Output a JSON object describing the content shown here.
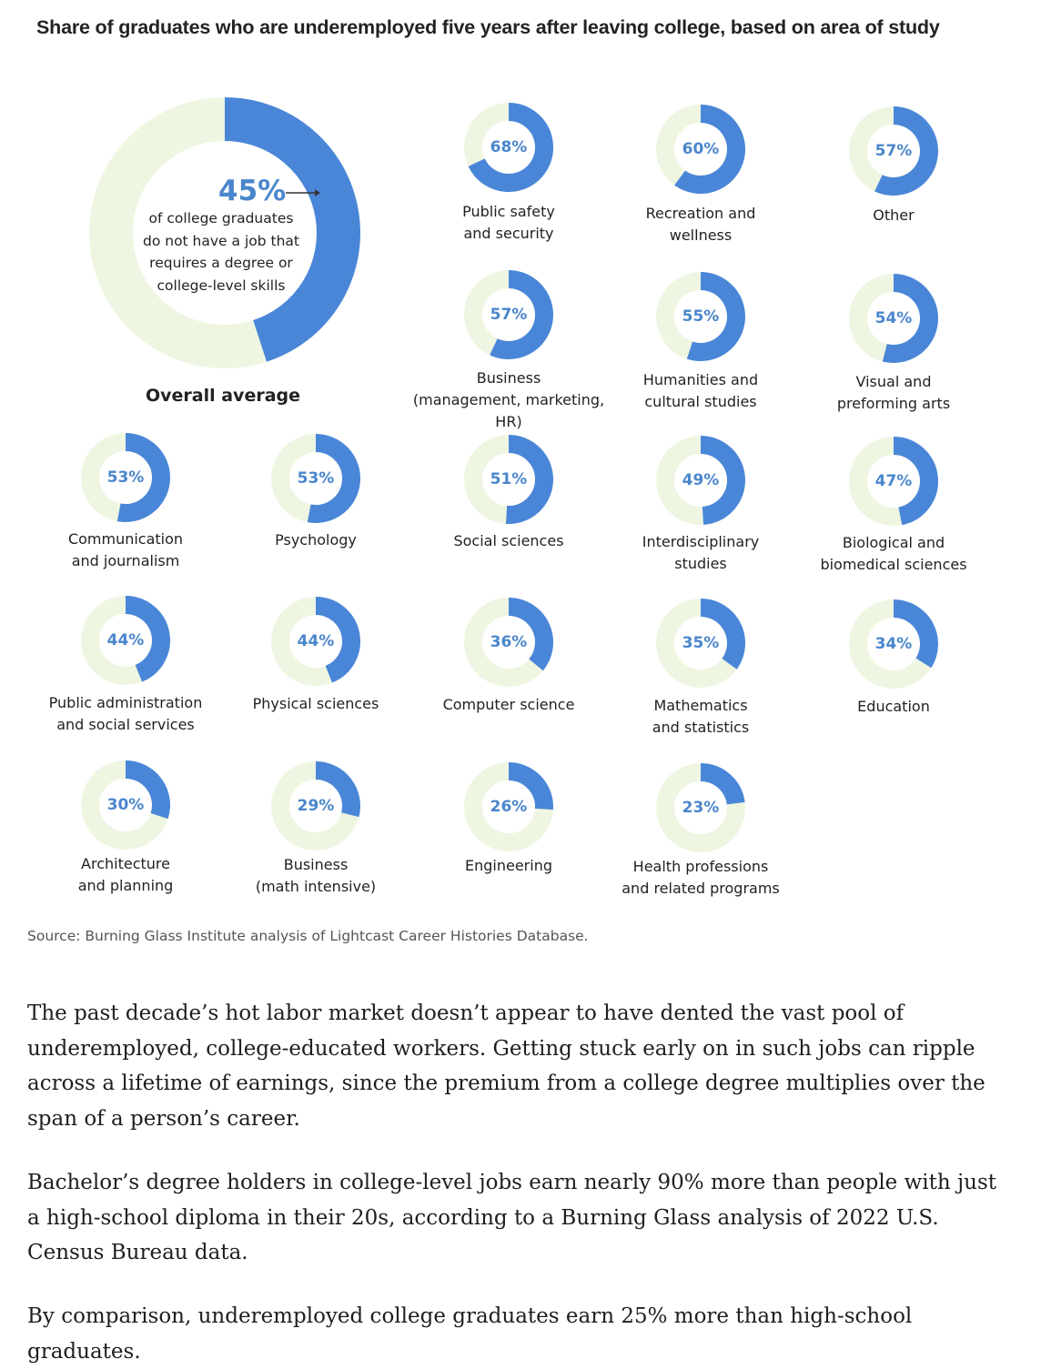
{
  "title": "Share of graduates who are underemployed five years after leaving college, based on area of study",
  "colors": {
    "filled": "#4a86d8",
    "remainder": "#eef6e2",
    "percent_text": "#4a86cc"
  },
  "overall": {
    "percent_label": "45%",
    "description": "of college graduates\ndo not have a job that\nrequires a degree or\ncollege-level skills",
    "label": "Overall average"
  },
  "chart_data": {
    "type": "donut",
    "title": "Share of graduates who are underemployed five years after leaving college, based on area of study",
    "overall": {
      "label": "Overall average",
      "value": 45
    },
    "categories": [
      {
        "name": "Public safety\nand security",
        "value": 68
      },
      {
        "name": "Recreation and\nwellness",
        "value": 60
      },
      {
        "name": "Other",
        "value": 57
      },
      {
        "name": "Business\n(management, marketing, HR)",
        "value": 57
      },
      {
        "name": "Humanities and\ncultural studies",
        "value": 55
      },
      {
        "name": "Visual and\npreforming arts",
        "value": 54
      },
      {
        "name": "Communication\nand journalism",
        "value": 53
      },
      {
        "name": "Psychology",
        "value": 53
      },
      {
        "name": "Social sciences",
        "value": 51
      },
      {
        "name": "Interdisciplinary\nstudies",
        "value": 49
      },
      {
        "name": "Biological and\nbiomedical sciences",
        "value": 47
      },
      {
        "name": "Public administration\nand social services",
        "value": 44
      },
      {
        "name": "Physical sciences",
        "value": 44
      },
      {
        "name": "Computer science",
        "value": 36
      },
      {
        "name": "Mathematics\nand statistics",
        "value": 35
      },
      {
        "name": "Education",
        "value": 34
      },
      {
        "name": "Architecture\nand planning",
        "value": 30
      },
      {
        "name": "Business\n(math intensive)",
        "value": 29
      },
      {
        "name": "Engineering",
        "value": 26
      },
      {
        "name": "Health professions\nand related programs",
        "value": 23
      }
    ]
  },
  "source": "Source: Burning Glass Institute analysis of Lightcast Career Histories Database.",
  "paragraphs": [
    "The past decade’s hot labor market doesn’t appear to have dented the vast pool of underemployed, college-educated workers. Getting stuck early on in such jobs can ripple across a lifetime of earnings, since the premium from a college degree multiplies over the span of a person’s career.",
    "Bachelor’s degree holders in college-level jobs earn nearly 90% more than people with just a high-school diploma in their 20s, according to a Burning Glass analysis of 2022 U.S. Census Bureau data.",
    "By comparison, underemployed college graduates earn 25% more than high-school graduates."
  ]
}
